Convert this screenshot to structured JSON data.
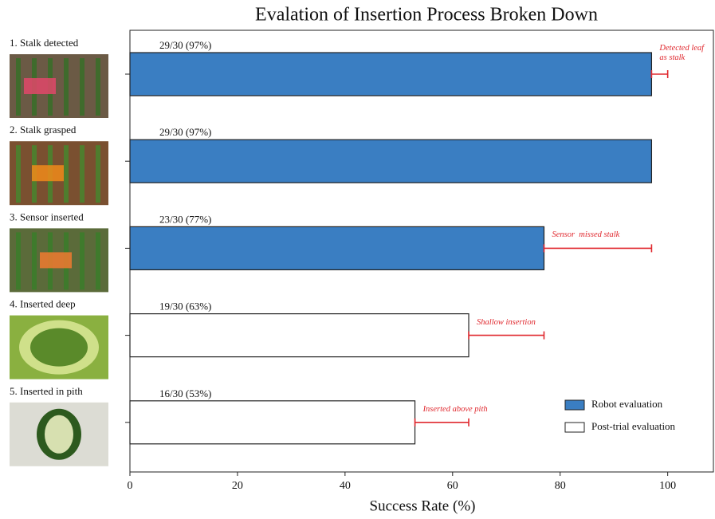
{
  "chart_data": {
    "type": "bar",
    "orientation": "horizontal",
    "title": "Evalation of Insertion Process Broken Down",
    "xlabel": "Success Rate (%)",
    "categories": [
      "1. Stalk detected",
      "2. Stalk grasped",
      "3. Sensor inserted",
      "4. Inserted deep",
      "5. Inserted in pith"
    ],
    "series": [
      {
        "name": "Robot evaluation",
        "color": "#3a7ec2",
        "values": [
          97,
          97,
          77,
          null,
          null
        ],
        "value_labels": [
          "29/30 (97%)",
          "29/30 (97%)",
          "23/30 (77%)",
          null,
          null
        ]
      },
      {
        "name": "Post-trial evaluation",
        "color": "#ffffff",
        "values": [
          null,
          null,
          null,
          63,
          53
        ],
        "value_labels": [
          null,
          null,
          null,
          "19/30 (63%)",
          "16/30 (53%)"
        ]
      }
    ],
    "range_ends": [
      100,
      null,
      97,
      77,
      63
    ],
    "range_labels": [
      "Detected leaf as stalk",
      null,
      "Sensor  missed stalk",
      "Shallow insertion",
      "Inserted above pith"
    ],
    "range_color": "#e0282e",
    "xlim": [
      0,
      108.5
    ],
    "xticks": [
      0,
      20,
      40,
      60,
      80,
      100
    ],
    "grid": false,
    "legend": "lower right"
  }
}
